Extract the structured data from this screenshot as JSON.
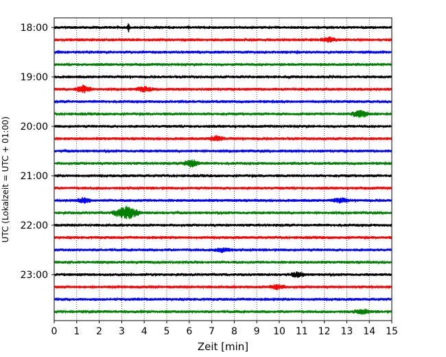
{
  "chart_data": {
    "type": "line",
    "chart_kind": "seismogram helicorder",
    "xlabel": "Zeit  [min]",
    "ylabel": "UTC (Lokalzeit = UTC + 01:00)",
    "xlim": [
      0,
      15
    ],
    "x_ticks": [
      0,
      1,
      2,
      3,
      4,
      5,
      6,
      7,
      8,
      9,
      10,
      11,
      12,
      13,
      14,
      15
    ],
    "x_tick_labels": [
      "0",
      "1",
      "2",
      "3",
      "4",
      "5",
      "6",
      "7",
      "8",
      "9",
      "10",
      "11",
      "12",
      "13",
      "14",
      "15"
    ],
    "y_tick_labels": [
      "18:00",
      "19:00",
      "20:00",
      "21:00",
      "22:00",
      "23:00"
    ],
    "vertical_grid": "dotted",
    "trace_colors": [
      "#000000",
      "#ff0000",
      "#0000ff",
      "#008000"
    ],
    "traces": [
      {
        "start": "18:00",
        "color_index": 0,
        "events": [
          {
            "minute": 3.3,
            "amplitude": "spike"
          }
        ]
      },
      {
        "start": "18:15",
        "color_index": 1,
        "events": [
          {
            "minute": 12.2,
            "amplitude": "small"
          }
        ]
      },
      {
        "start": "18:30",
        "color_index": 2,
        "events": []
      },
      {
        "start": "18:45",
        "color_index": 3,
        "events": []
      },
      {
        "start": "19:00",
        "color_index": 0,
        "events": []
      },
      {
        "start": "19:15",
        "color_index": 1,
        "events": [
          {
            "minute": 1.3,
            "amplitude": "medium"
          },
          {
            "minute": 4.0,
            "amplitude": "small"
          }
        ]
      },
      {
        "start": "19:30",
        "color_index": 2,
        "events": []
      },
      {
        "start": "19:45",
        "color_index": 3,
        "events": [
          {
            "minute": 13.6,
            "amplitude": "medium"
          }
        ]
      },
      {
        "start": "20:00",
        "color_index": 0,
        "events": []
      },
      {
        "start": "20:15",
        "color_index": 1,
        "events": [
          {
            "minute": 7.2,
            "amplitude": "small"
          }
        ]
      },
      {
        "start": "20:30",
        "color_index": 2,
        "events": []
      },
      {
        "start": "20:45",
        "color_index": 3,
        "events": [
          {
            "minute": 6.1,
            "amplitude": "medium"
          }
        ]
      },
      {
        "start": "21:00",
        "color_index": 0,
        "events": []
      },
      {
        "start": "21:15",
        "color_index": 1,
        "events": []
      },
      {
        "start": "21:30",
        "color_index": 2,
        "events": [
          {
            "minute": 1.3,
            "amplitude": "small"
          },
          {
            "minute": 12.7,
            "amplitude": "small"
          }
        ]
      },
      {
        "start": "21:45",
        "color_index": 3,
        "events": [
          {
            "minute": 3.2,
            "amplitude": "large"
          }
        ]
      },
      {
        "start": "22:00",
        "color_index": 0,
        "events": []
      },
      {
        "start": "22:15",
        "color_index": 1,
        "events": []
      },
      {
        "start": "22:30",
        "color_index": 2,
        "events": [
          {
            "minute": 7.5,
            "amplitude": "small"
          }
        ]
      },
      {
        "start": "22:45",
        "color_index": 3,
        "events": []
      },
      {
        "start": "23:00",
        "color_index": 0,
        "events": [
          {
            "minute": 10.8,
            "amplitude": "small"
          }
        ]
      },
      {
        "start": "23:15",
        "color_index": 1,
        "events": [
          {
            "minute": 9.9,
            "amplitude": "small"
          }
        ]
      },
      {
        "start": "23:30",
        "color_index": 2,
        "events": []
      },
      {
        "start": "23:45",
        "color_index": 3,
        "events": [
          {
            "minute": 13.7,
            "amplitude": "small"
          }
        ]
      }
    ]
  }
}
